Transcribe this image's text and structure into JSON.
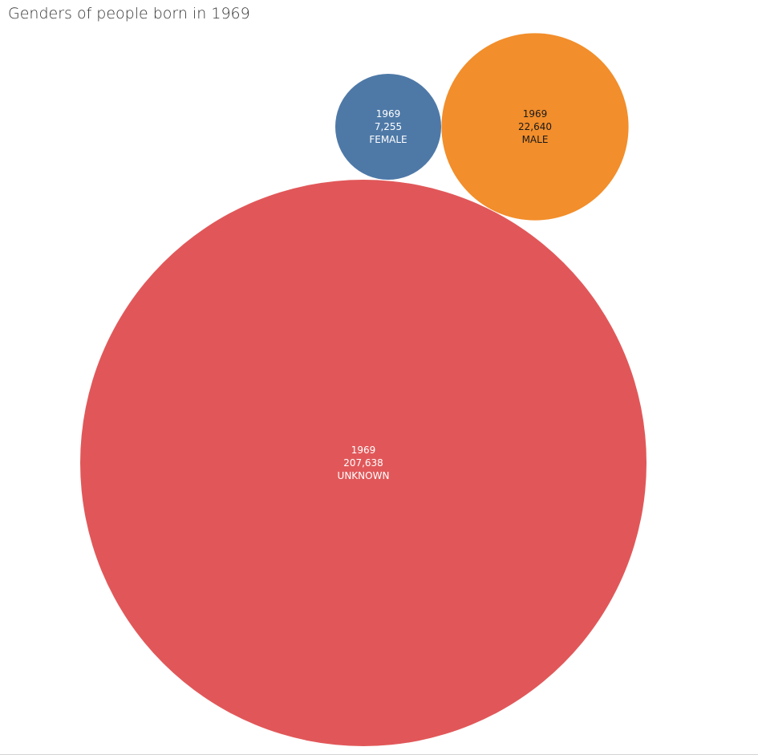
{
  "title": "Genders of people born in 1969",
  "chart_data": {
    "type": "bubble",
    "title": "Genders of people born in 1969",
    "series": [
      {
        "year": "1969",
        "count": 7255,
        "count_label": "7,255",
        "gender": "FEMALE",
        "color": "#4e79a7",
        "text_color": "#ffffff"
      },
      {
        "year": "1969",
        "count": 22640,
        "count_label": "22,640",
        "gender": "MALE",
        "color": "#f28e2b",
        "text_color": "#1a1a1a"
      },
      {
        "year": "1969",
        "count": 207638,
        "count_label": "207,638",
        "gender": "UNKNOWN",
        "color": "#e15759",
        "text_color": "#ffffff"
      }
    ]
  }
}
